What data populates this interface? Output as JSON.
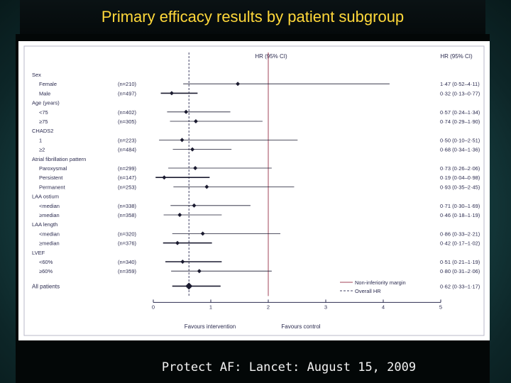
{
  "title": "Primary efficacy results by patient subgroup",
  "footer": "Protect AF: Lancet: August 15, 2009",
  "chart_data": {
    "type": "forest",
    "header_left": "HR (95% CI)",
    "header_right": "HR (95% CI)",
    "x_ticks": [
      "0",
      "1",
      "2",
      "3",
      "4",
      "5"
    ],
    "x_range": [
      0,
      5
    ],
    "reference_line": 2,
    "overall_hr": 0.62,
    "favours_left": "Favours intervention",
    "favours_right": "Favours control",
    "legend": {
      "solid": "Non-inferiority margin",
      "dashed": "Overall HR"
    },
    "rows": [
      {
        "label": "Sex",
        "heading": true
      },
      {
        "label": "Female",
        "n": "(n=210)",
        "hr": 1.47,
        "lo": 0.52,
        "hi": 4.11,
        "text": "1·47 (0·52–4·11)"
      },
      {
        "label": "Male",
        "n": "(n=497)",
        "hr": 0.32,
        "lo": 0.13,
        "hi": 0.77,
        "text": "0·32 (0·13–0·77)"
      },
      {
        "label": "Age (years)",
        "heading": true
      },
      {
        "label": "<75",
        "n": "(n=402)",
        "hr": 0.57,
        "lo": 0.24,
        "hi": 1.34,
        "text": "0·57 (0·24–1·34)"
      },
      {
        "label": "≥75",
        "n": "(n=305)",
        "hr": 0.74,
        "lo": 0.29,
        "hi": 1.9,
        "text": "0·74 (0·29–1·90)"
      },
      {
        "label": "CHADS2",
        "heading": true
      },
      {
        "label": "1",
        "n": "(n=223)",
        "hr": 0.5,
        "lo": 0.1,
        "hi": 2.51,
        "text": "0·50 (0·10–2·51)"
      },
      {
        "label": "≥2",
        "n": "(n=484)",
        "hr": 0.68,
        "lo": 0.34,
        "hi": 1.36,
        "text": "0·68 (0·34–1·36)"
      },
      {
        "label": "Atrial fibrillation pattern",
        "heading": true
      },
      {
        "label": "Paroxysmal",
        "n": "(n=299)",
        "hr": 0.73,
        "lo": 0.26,
        "hi": 2.06,
        "text": "0·73 (0·26–2·06)"
      },
      {
        "label": "Persistent",
        "n": "(n=147)",
        "hr": 0.19,
        "lo": 0.04,
        "hi": 0.98,
        "text": "0·19 (0·04–0·98)"
      },
      {
        "label": "Permanent",
        "n": "(n=253)",
        "hr": 0.93,
        "lo": 0.35,
        "hi": 2.45,
        "text": "0·93 (0·35–2·45)"
      },
      {
        "label": "LAA ostium",
        "heading": true
      },
      {
        "label": "<median",
        "n": "(n=338)",
        "hr": 0.71,
        "lo": 0.3,
        "hi": 1.69,
        "text": "0·71 (0·30–1·69)"
      },
      {
        "label": "≥median",
        "n": "(n=358)",
        "hr": 0.46,
        "lo": 0.18,
        "hi": 1.19,
        "text": "0·46 (0·18–1·19)"
      },
      {
        "label": "LAA length",
        "heading": true
      },
      {
        "label": "<median",
        "n": "(n=320)",
        "hr": 0.86,
        "lo": 0.33,
        "hi": 2.21,
        "text": "0·86 (0·33–2·21)"
      },
      {
        "label": "≥median",
        "n": "(n=376)",
        "hr": 0.42,
        "lo": 0.17,
        "hi": 1.02,
        "text": "0·42 (0·17–1·02)"
      },
      {
        "label": "LVEF",
        "heading": true
      },
      {
        "label": "<60%",
        "n": "(n=340)",
        "hr": 0.51,
        "lo": 0.21,
        "hi": 1.19,
        "text": "0·51 (0·21–1·19)"
      },
      {
        "label": "≥60%",
        "n": "(n=359)",
        "hr": 0.8,
        "lo": 0.31,
        "hi": 2.06,
        "text": "0·80 (0·31–2·06)"
      },
      {
        "label": "All patients",
        "heading": true,
        "hr": 0.62,
        "lo": 0.33,
        "hi": 1.17,
        "text": "0·62 (0·33–1·17)",
        "overall": true
      }
    ]
  }
}
